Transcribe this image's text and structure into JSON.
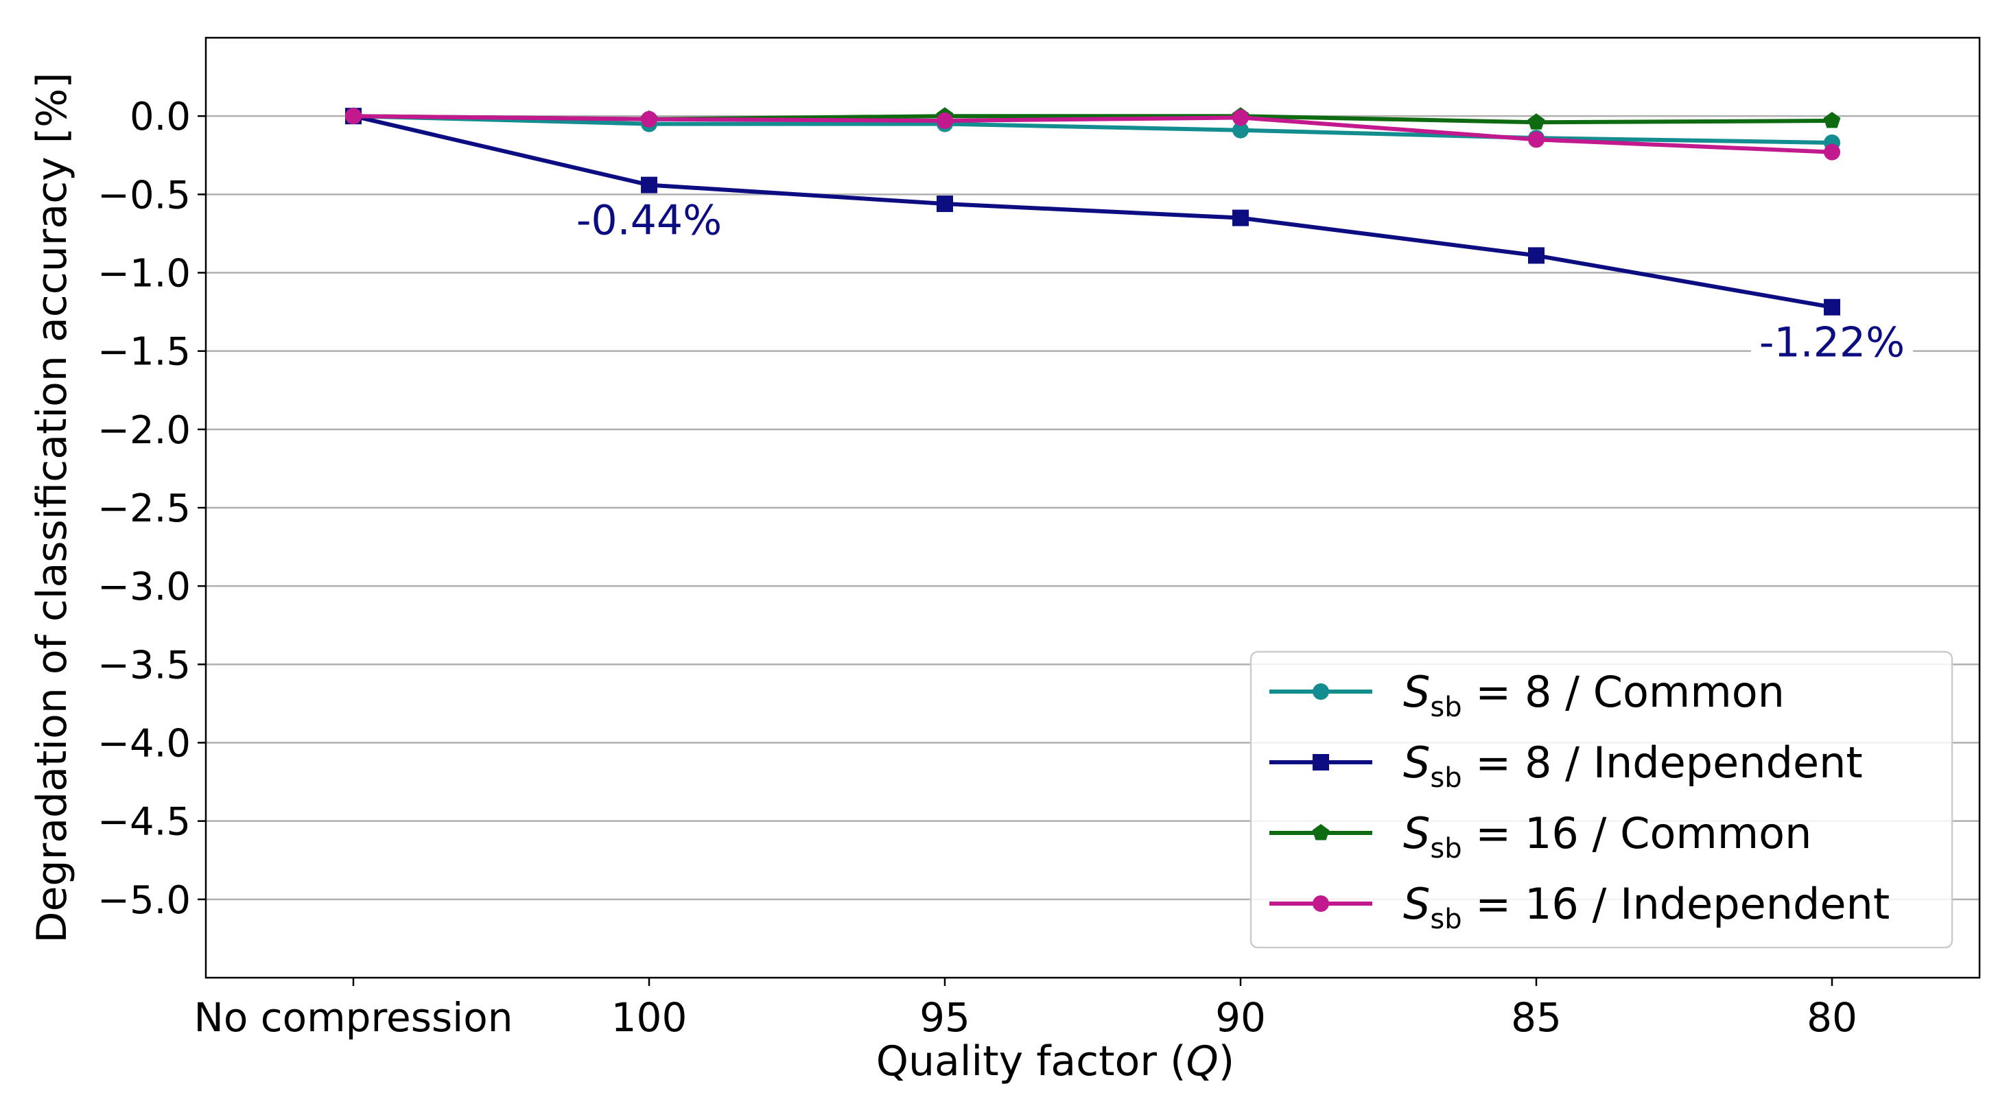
{
  "chart_data": {
    "type": "line",
    "title": "",
    "xlabel": "Quality factor (Q)",
    "xlabel_main": "Quality factor (",
    "xlabel_var": "Q",
    "xlabel_end": ")",
    "ylabel": "Degradation of classification accuracy [%]",
    "categories": [
      "No compression",
      "100",
      "95",
      "90",
      "85",
      "80"
    ],
    "ylim": [
      -5.5,
      0.5
    ],
    "yticks": [
      0.0,
      -0.5,
      -1.0,
      -1.5,
      -2.0,
      -2.5,
      -3.0,
      -3.5,
      -4.0,
      -4.5,
      -5.0
    ],
    "ytick_labels": [
      "0.0",
      "−0.5",
      "−1.0",
      "−1.5",
      "−2.0",
      "−2.5",
      "−3.0",
      "−3.5",
      "−4.0",
      "−4.5",
      "−5.0"
    ],
    "grid": true,
    "legend_position": "lower-right",
    "series": [
      {
        "name": "S_sb = 8 / Common",
        "label_var": "S",
        "label_sub": "sb",
        "label_rest": " = 8 / Common",
        "color": "#138d90",
        "marker": "circle",
        "values": [
          0.0,
          -0.05,
          -0.05,
          -0.09,
          -0.14,
          -0.17
        ]
      },
      {
        "name": "S_sb = 8 / Independent",
        "label_var": "S",
        "label_sub": "sb",
        "label_rest": " = 8 / Independent",
        "color": "#0d0d82",
        "marker": "square",
        "values": [
          0.0,
          -0.44,
          -0.56,
          -0.65,
          -0.89,
          -1.22
        ]
      },
      {
        "name": "S_sb = 16 / Common",
        "label_var": "S",
        "label_sub": "sb",
        "label_rest": " = 16 / Common",
        "color": "#0f6b11",
        "marker": "pentagon",
        "values": [
          0.0,
          -0.02,
          0.0,
          0.0,
          -0.04,
          -0.03
        ]
      },
      {
        "name": "S_sb = 16 / Independent",
        "label_var": "S",
        "label_sub": "sb",
        "label_rest": " = 16 / Independent",
        "color": "#c21a8e",
        "marker": "circle",
        "values": [
          0.0,
          -0.02,
          -0.03,
          -0.01,
          -0.15,
          -0.23
        ]
      }
    ],
    "annotations": [
      {
        "text": "-0.44%",
        "series": 1,
        "index": 1,
        "color": "#0d0d82"
      },
      {
        "text": "-1.22%",
        "series": 1,
        "index": 5,
        "color": "#0d0d82"
      }
    ]
  }
}
